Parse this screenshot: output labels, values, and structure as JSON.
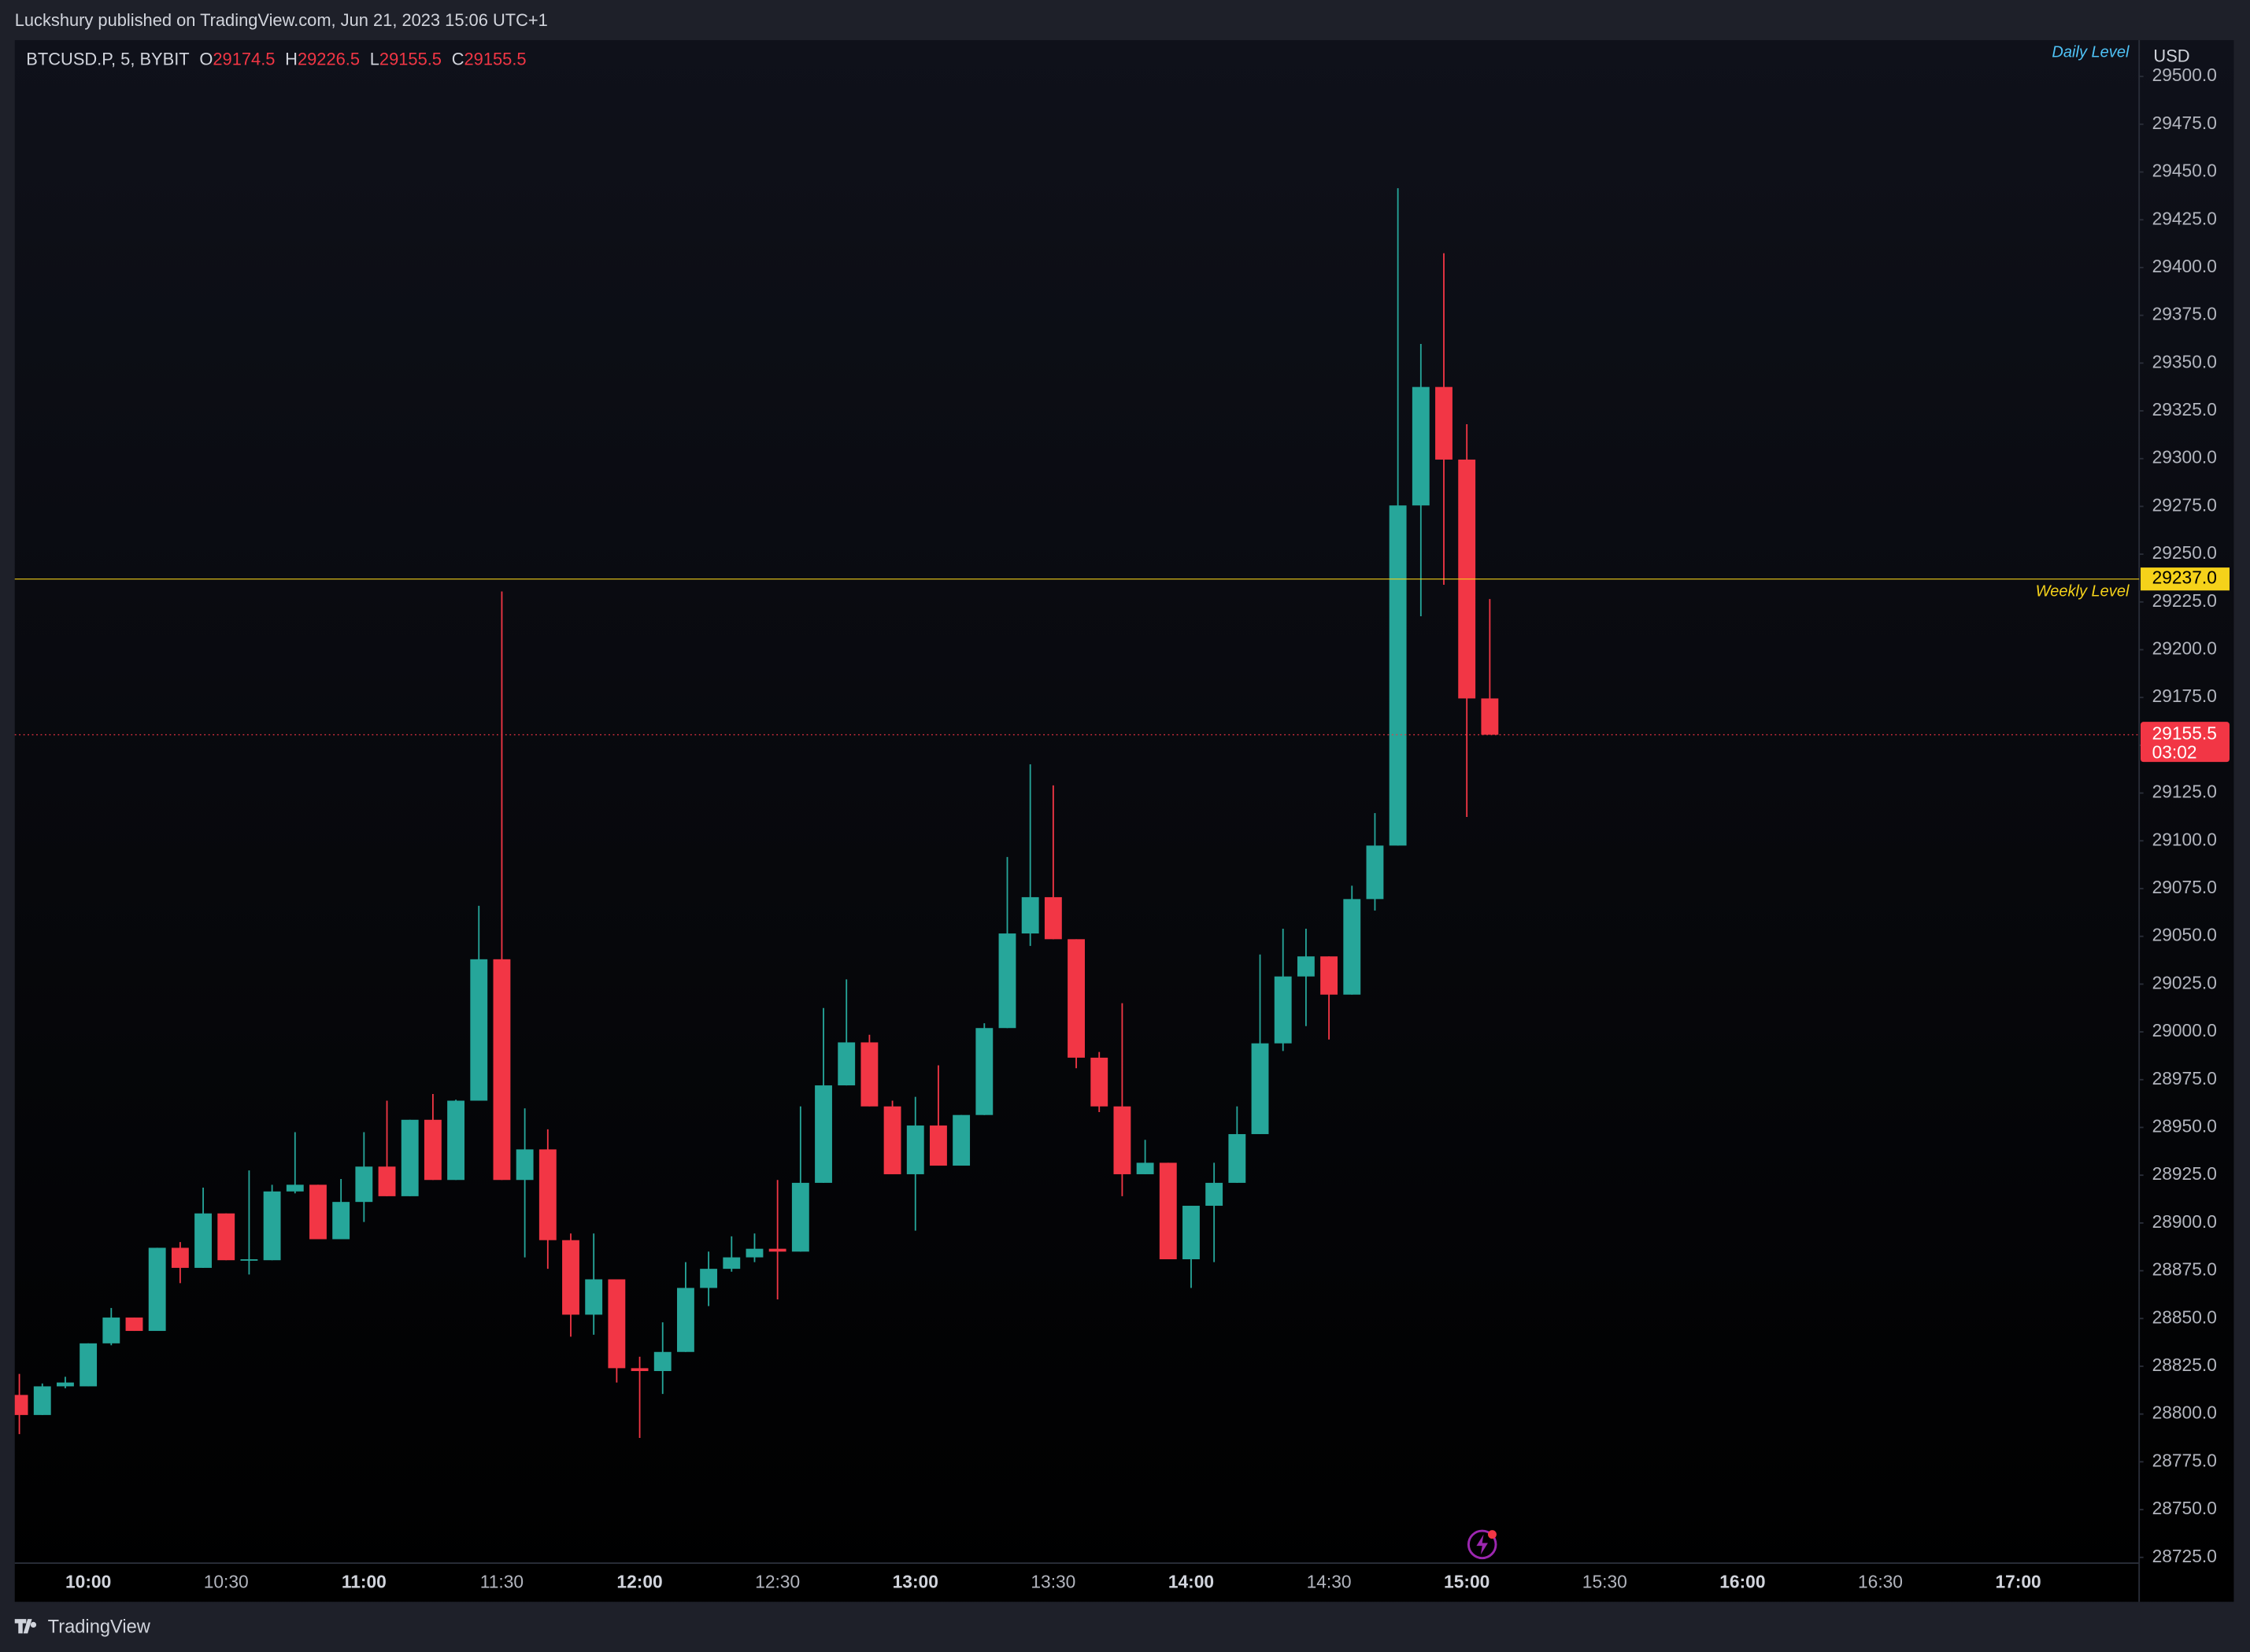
{
  "header": {
    "published": "Luckshury published on TradingView.com, Jun 21, 2023 15:06 UTC+1"
  },
  "footer": {
    "brand": "TradingView"
  },
  "chart_data": {
    "type": "candlestick",
    "symbol": "BTCUSD.P, 5, BYBIT",
    "ohlc_labels": [
      "O",
      "H",
      "L",
      "C"
    ],
    "currency": "USD",
    "countdown": "03:02",
    "up_color": "#26a69a",
    "down_color": "#f23645",
    "x": [
      "09:45",
      "09:50",
      "09:55",
      "10:00",
      "10:05",
      "10:10",
      "10:15",
      "10:20",
      "10:25",
      "10:30",
      "10:35",
      "10:40",
      "10:45",
      "10:50",
      "10:55",
      "11:00",
      "11:05",
      "11:10",
      "11:15",
      "11:20",
      "11:25",
      "11:30",
      "11:35",
      "11:40",
      "11:45",
      "11:50",
      "11:55",
      "12:00",
      "12:05",
      "12:10",
      "12:15",
      "12:20",
      "12:25",
      "12:30",
      "12:35",
      "12:40",
      "12:45",
      "12:50",
      "12:55",
      "13:00",
      "13:05",
      "13:10",
      "13:15",
      "13:20",
      "13:25",
      "13:30",
      "13:35",
      "13:40",
      "13:45",
      "13:50",
      "13:55",
      "14:00",
      "14:05",
      "14:10",
      "14:15",
      "14:20",
      "14:25",
      "14:30",
      "14:35",
      "14:40",
      "14:45",
      "14:50",
      "14:55",
      "15:00",
      "15:05"
    ],
    "open": [
      28810,
      28799.5,
      28814.5,
      28814.5,
      28837,
      28850.5,
      28843.5,
      28887,
      28876.5,
      28905,
      28880.5,
      28880.5,
      28916.5,
      28920,
      28891.5,
      28911,
      28929.5,
      28914,
      28954,
      28922.5,
      28964,
      29038,
      28922.5,
      28938.5,
      28891,
      28852,
      28870.5,
      28824,
      28822.5,
      28832.5,
      28866,
      28876,
      28882,
      28886.5,
      28885,
      28921,
      28972,
      28994.5,
      28961,
      28925.5,
      28951,
      28930,
      28956.5,
      29002,
      29051.5,
      29070.5,
      29048.5,
      28986.5,
      28961,
      28925.5,
      28931.5,
      28881,
      28909,
      28921,
      28946.5,
      28994,
      29029,
      29039.5,
      29019.5,
      29069.5,
      29097.5,
      29275.5,
      29337.5,
      29299.5,
      29174.5
    ],
    "high": [
      28821,
      28816,
      28819.5,
      28837,
      28855.5,
      28850.5,
      28887,
      28890,
      28918.5,
      28905,
      28927.5,
      28920,
      28947.5,
      28920,
      28923,
      28947.5,
      28964,
      28954,
      28967.5,
      28964.5,
      29066,
      29230.5,
      28960,
      28949,
      28894.5,
      28894.5,
      28870.5,
      28830,
      28848,
      28879.5,
      28885,
      28893,
      28894.5,
      28922.5,
      28961,
      29012.5,
      29027.5,
      28998.5,
      28964,
      28966,
      28982.5,
      28956.5,
      29004.5,
      29091.5,
      29140,
      29129,
      29048.5,
      28989.5,
      29015,
      28943.5,
      28931.5,
      28909,
      28931.5,
      28961,
      29040.5,
      29054,
      29054,
      29039.5,
      29076.5,
      29114.5,
      29441.5,
      29360,
      29407.5,
      29318,
      29226.5
    ],
    "low": [
      28789.5,
      28799.5,
      28813.5,
      28814.5,
      28836,
      28843.5,
      28843.5,
      28868.5,
      28876.5,
      28880.5,
      28873,
      28880.5,
      28915.5,
      28891.5,
      28891.5,
      28900.5,
      28914,
      28914,
      28922.5,
      28922.5,
      28964,
      28922.5,
      28882,
      28876,
      28840.5,
      28841.5,
      28816.5,
      28787.5,
      28810.5,
      28832.5,
      28856.5,
      28874.5,
      28879.5,
      28860,
      28885,
      28921,
      28972,
      28961,
      28925.5,
      28896,
      28930,
      28930,
      28956.5,
      29002,
      29045,
      29048.5,
      28981,
      28958,
      28914,
      28925.5,
      28881,
      28866,
      28879.5,
      28921,
      28946.5,
      28990,
      29003,
      28996,
      29019.5,
      29063.5,
      29097.5,
      29217.5,
      29234,
      29112.5,
      29155.5
    ],
    "close": [
      28799.5,
      28814.5,
      28816.5,
      28837,
      28850.5,
      28843.5,
      28887,
      28876.5,
      28905,
      28880.5,
      28881,
      28916.5,
      28920,
      28891.5,
      28911,
      28929.5,
      28914,
      28954,
      28922.5,
      28964,
      29038,
      28922.5,
      28938.5,
      28891,
      28852,
      28870.5,
      28824,
      28822.5,
      28832.5,
      28866,
      28876,
      28882,
      28886.5,
      28885,
      28921,
      28972,
      28994.5,
      28961,
      28925.5,
      28951,
      28930,
      28956.5,
      29002,
      29051.5,
      29070.5,
      29048.5,
      28986.5,
      28961,
      28925.5,
      28931.5,
      28881,
      28909,
      28921,
      28946.5,
      28994,
      29029,
      29039.5,
      29019.5,
      29069.5,
      29097.5,
      29275.5,
      29337.5,
      29299.5,
      29174.5,
      29155.5
    ],
    "levels": [
      {
        "name": "Daily Level",
        "color": "#4fc3f7"
      },
      {
        "name": "Weekly Level",
        "value": 29237,
        "label": "29237.0",
        "color": "#f5d21a"
      }
    ],
    "xlim": [
      "09:44",
      "17:26"
    ],
    "xticks": [
      "10:00",
      "10:30",
      "11:00",
      "11:30",
      "12:00",
      "12:30",
      "13:00",
      "13:30",
      "14:00",
      "14:30",
      "15:00",
      "15:30",
      "16:00",
      "16:30",
      "17:00"
    ],
    "ylim": [
      28722,
      29519
    ],
    "yticks": [
      {
        "value": 28725,
        "label": "28725.0"
      },
      {
        "value": 28750,
        "label": "28750.0"
      },
      {
        "value": 28775,
        "label": "28775.0"
      },
      {
        "value": 28800,
        "label": "28800.0"
      },
      {
        "value": 28825,
        "label": "28825.0"
      },
      {
        "value": 28850,
        "label": "28850.0"
      },
      {
        "value": 28875,
        "label": "28875.0"
      },
      {
        "value": 28900,
        "label": "28900.0"
      },
      {
        "value": 28925,
        "label": "28925.0"
      },
      {
        "value": 28950,
        "label": "28950.0"
      },
      {
        "value": 28975,
        "label": "28975.0"
      },
      {
        "value": 29000,
        "label": "29000.0"
      },
      {
        "value": 29025,
        "label": "29025.0"
      },
      {
        "value": 29050,
        "label": "29050.0"
      },
      {
        "value": 29075,
        "label": "29075.0"
      },
      {
        "value": 29100,
        "label": "29100.0"
      },
      {
        "value": 29125,
        "label": "29125.0"
      },
      {
        "value": 29150,
        "label": "29150.0"
      },
      {
        "value": 29175,
        "label": "29175.0"
      },
      {
        "value": 29200,
        "label": "29200.0"
      },
      {
        "value": 29225,
        "label": "29225.0"
      },
      {
        "value": 29250,
        "label": "29250.0"
      },
      {
        "value": 29275,
        "label": "29275.0"
      },
      {
        "value": 29300,
        "label": "29300.0"
      },
      {
        "value": 29325,
        "label": "29325.0"
      },
      {
        "value": 29350,
        "label": "29350.0"
      },
      {
        "value": 29375,
        "label": "29375.0"
      },
      {
        "value": 29400,
        "label": "29400.0"
      },
      {
        "value": 29425,
        "label": "29425.0"
      },
      {
        "value": 29450,
        "label": "29450.0"
      },
      {
        "value": 29475,
        "label": "29475.0"
      },
      {
        "value": 29500,
        "label": "29500.0"
      }
    ],
    "grid": false
  }
}
